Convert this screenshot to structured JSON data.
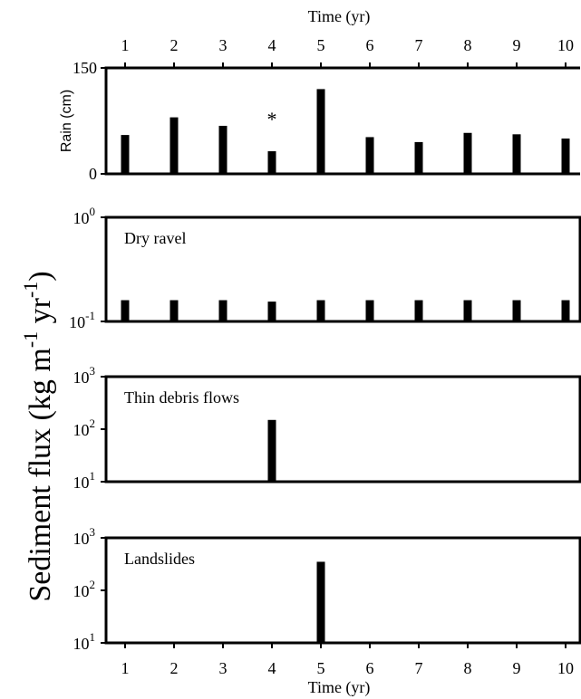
{
  "chart_data": {
    "type": "bar",
    "x_label_top": "Time (yr)",
    "x_label_bottom": "Time (yr)",
    "x": [
      1,
      2,
      3,
      4,
      5,
      6,
      7,
      8,
      9,
      10
    ],
    "x_tick_labels": [
      "1",
      "2",
      "3",
      "4",
      "5",
      "6",
      "7",
      "8",
      "9",
      "10"
    ],
    "shared_ylabel": {
      "base": "Sediment flux (kg m",
      "sup1": "-1",
      "mid": " yr",
      "sup2": "-1",
      "end": ")"
    },
    "panels": [
      {
        "id": "rain",
        "ylabel": "Rain (cm)",
        "scale": "linear",
        "ylim": [
          0,
          150
        ],
        "ytick_labels": [
          {
            "v": 0,
            "text": "0"
          },
          {
            "v": 150,
            "text": "150"
          }
        ],
        "values": [
          55,
          80,
          68,
          32,
          120,
          52,
          45,
          58,
          56,
          50
        ],
        "annotation": {
          "text": "*",
          "x": 4
        }
      },
      {
        "id": "dry-ravel",
        "label": "Dry ravel",
        "scale": "log",
        "ylim": [
          0.1,
          1
        ],
        "ytick_labels": [
          {
            "v": 0.1,
            "base": "10",
            "exp": "-1"
          },
          {
            "v": 1,
            "base": "10",
            "exp": "0"
          }
        ],
        "values": [
          0.16,
          0.16,
          0.16,
          0.155,
          0.16,
          0.16,
          0.16,
          0.16,
          0.16,
          0.16
        ]
      },
      {
        "id": "thin-debris-flows",
        "label": "Thin debris flows",
        "scale": "log",
        "ylim": [
          10,
          1000
        ],
        "ytick_labels": [
          {
            "v": 10,
            "base": "10",
            "exp": "1"
          },
          {
            "v": 100,
            "base": "10",
            "exp": "2"
          },
          {
            "v": 1000,
            "base": "10",
            "exp": "3"
          }
        ],
        "values": [
          null,
          null,
          null,
          150,
          null,
          null,
          null,
          null,
          null,
          null
        ]
      },
      {
        "id": "landslides",
        "label": "Landslides",
        "scale": "log",
        "ylim": [
          10,
          1000
        ],
        "ytick_labels": [
          {
            "v": 10,
            "base": "10",
            "exp": "1"
          },
          {
            "v": 100,
            "base": "10",
            "exp": "2"
          },
          {
            "v": 1000,
            "base": "10",
            "exp": "3"
          }
        ],
        "values": [
          null,
          null,
          null,
          null,
          350,
          null,
          null,
          null,
          null,
          null
        ]
      }
    ]
  }
}
